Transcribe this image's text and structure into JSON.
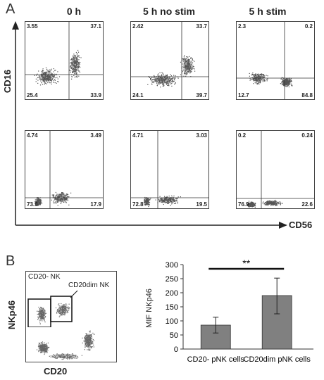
{
  "panel_a": {
    "letter": "A",
    "columns": [
      "0 h",
      "5 h no stim",
      "5 h stim"
    ],
    "y_axis": "CD16",
    "x_axis": "CD56",
    "plots": [
      {
        "row": 0,
        "col": 0,
        "q": [
          "3.55",
          "37.1",
          "25.4",
          "33.9"
        ]
      },
      {
        "row": 0,
        "col": 1,
        "q": [
          "2.42",
          "33.7",
          "24.1",
          "39.7"
        ]
      },
      {
        "row": 0,
        "col": 2,
        "q": [
          "2.3",
          "0.2",
          "12.7",
          "84.8"
        ]
      },
      {
        "row": 1,
        "col": 0,
        "q": [
          "4.74",
          "3.49",
          "73.9",
          "17.9"
        ]
      },
      {
        "row": 1,
        "col": 1,
        "q": [
          "4.71",
          "3.03",
          "72.8",
          "19.5"
        ]
      },
      {
        "row": 1,
        "col": 2,
        "q": [
          "0.2",
          "0.24",
          "76.9",
          "22.6"
        ]
      }
    ]
  },
  "panel_b": {
    "letter": "B",
    "y_axis": "NKp46",
    "x_axis": "CD20",
    "gate1": "CD20- NK",
    "gate2": "CD20dim NK"
  },
  "chart_data": {
    "type": "bar",
    "categories": [
      "CD20- pNK cells",
      "CD20dim pNK cells"
    ],
    "values": [
      85,
      190
    ],
    "error_high": [
      113,
      252
    ],
    "error_low": [
      57,
      125
    ],
    "ylabel": "MIF NKp46",
    "ylim": [
      0,
      300
    ],
    "yticks": [
      "0",
      "50",
      "100",
      "150",
      "200",
      "250",
      "300"
    ],
    "significance": "**",
    "bar_color": "#808080"
  }
}
